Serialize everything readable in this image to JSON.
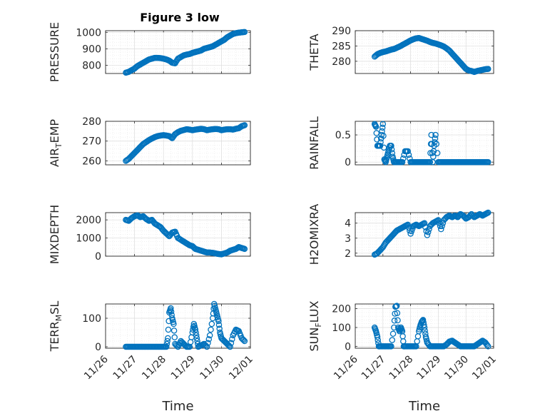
{
  "figure_title": "Figure 3 low",
  "marker_color": "#0072BD",
  "chart_data": [
    {
      "type": "scatter",
      "id": "pressure",
      "title": "Figure 3 low",
      "ylabel": "PRESSURE",
      "ylabel_sub": "",
      "ylim": [
        750,
        1010
      ],
      "yticks": [
        800,
        900,
        1000
      ],
      "xlim": [
        0,
        5
      ],
      "xticklabels": [
        "11/26",
        "11/27",
        "11/28",
        "11/29",
        "11/30",
        "12/01"
      ],
      "xlabel": "",
      "grid": true,
      "x": [
        0.7,
        0.8,
        0.9,
        1.0,
        1.1,
        1.2,
        1.3,
        1.4,
        1.5,
        1.6,
        1.7,
        1.8,
        1.9,
        2.0,
        2.1,
        2.2,
        2.3,
        2.4,
        2.5,
        2.6,
        2.7,
        2.8,
        2.9,
        3.0,
        3.1,
        3.2,
        3.3,
        3.4,
        3.5,
        3.6,
        3.7,
        3.8,
        3.9,
        4.0,
        4.1,
        4.2,
        4.3,
        4.4,
        4.5,
        4.6,
        4.7,
        4.8
      ],
      "y": [
        755,
        760,
        770,
        780,
        795,
        805,
        815,
        825,
        835,
        840,
        845,
        845,
        843,
        840,
        835,
        828,
        815,
        812,
        840,
        850,
        860,
        865,
        868,
        875,
        880,
        885,
        890,
        900,
        905,
        910,
        915,
        925,
        935,
        945,
        955,
        970,
        980,
        990,
        995,
        998,
        1000,
        1002
      ]
    },
    {
      "type": "scatter",
      "id": "theta",
      "ylabel": "THETA",
      "ylabel_sub": "",
      "ylim": [
        276,
        290
      ],
      "yticks": [
        280,
        285,
        290
      ],
      "xlim": [
        0,
        5
      ],
      "xticklabels": [
        "11/26",
        "11/27",
        "11/28",
        "11/29",
        "11/30",
        "12/01"
      ],
      "xlabel": "",
      "grid": true,
      "x": [
        0.7,
        0.8,
        0.9,
        1.0,
        1.1,
        1.2,
        1.3,
        1.4,
        1.5,
        1.6,
        1.7,
        1.8,
        1.9,
        2.0,
        2.1,
        2.2,
        2.3,
        2.4,
        2.5,
        2.6,
        2.7,
        2.8,
        2.9,
        3.0,
        3.1,
        3.2,
        3.3,
        3.4,
        3.5,
        3.6,
        3.7,
        3.8,
        3.9,
        4.0,
        4.1,
        4.2,
        4.3,
        4.4,
        4.5,
        4.6,
        4.7,
        4.8
      ],
      "y": [
        281.5,
        282.3,
        282.7,
        283,
        283.2,
        283.5,
        283.8,
        284,
        284.4,
        284.8,
        285.3,
        285.8,
        286.3,
        286.8,
        287.2,
        287.5,
        287.6,
        287.3,
        287,
        286.7,
        286.3,
        286,
        285.8,
        285.5,
        285.2,
        284.8,
        284.2,
        283.5,
        282.5,
        281.5,
        280.5,
        279.5,
        278.5,
        277.5,
        277,
        276.8,
        276.5,
        276.8,
        277,
        277.2,
        277.4,
        277.5
      ]
    },
    {
      "type": "scatter",
      "id": "air-temp",
      "ylabel": "AIR",
      "ylabel_sub": "T",
      "ylabel_tail": "EMP",
      "ylim": [
        258,
        280
      ],
      "yticks": [
        260,
        270,
        280
      ],
      "xlim": [
        0,
        5
      ],
      "xticklabels": [
        "11/26",
        "11/27",
        "11/28",
        "11/29",
        "11/30",
        "12/01"
      ],
      "xlabel": "",
      "grid": true,
      "x": [
        0.7,
        0.8,
        0.9,
        1.0,
        1.1,
        1.2,
        1.3,
        1.4,
        1.5,
        1.6,
        1.7,
        1.8,
        1.9,
        2.0,
        2.1,
        2.2,
        2.3,
        2.4,
        2.5,
        2.6,
        2.7,
        2.8,
        2.9,
        3.0,
        3.1,
        3.2,
        3.3,
        3.4,
        3.5,
        3.6,
        3.7,
        3.8,
        3.9,
        4.0,
        4.1,
        4.2,
        4.3,
        4.4,
        4.5,
        4.6,
        4.7,
        4.8
      ],
      "y": [
        260,
        261,
        262.5,
        264,
        265.5,
        267,
        268.5,
        269.5,
        270.5,
        271.3,
        272,
        272.5,
        272.8,
        273,
        272.8,
        272.5,
        271.5,
        273.5,
        274.5,
        275.2,
        275.6,
        276,
        275.8,
        275.5,
        275.8,
        276,
        276.2,
        276,
        275.5,
        275.8,
        276,
        276.1,
        276,
        275.5,
        275.8,
        276,
        276,
        275.8,
        276.2,
        276.5,
        277.5,
        278
      ]
    },
    {
      "type": "scatter",
      "id": "rainfall",
      "ylabel": "RAINFALL",
      "ylabel_sub": "",
      "ylim": [
        -0.05,
        0.75
      ],
      "yticks": [
        0,
        0.5
      ],
      "yticklabels": [
        "0",
        "0.5"
      ],
      "xlim": [
        0,
        5
      ],
      "xticklabels": [
        "11/26",
        "11/27",
        "11/28",
        "11/29",
        "11/30",
        "12/01"
      ],
      "xlabel": "",
      "grid": true,
      "x": [
        0.7,
        0.75,
        0.8,
        0.85,
        0.9,
        0.95,
        1.0,
        1.05,
        1.1,
        1.15,
        1.2,
        1.25,
        1.3,
        1.35,
        1.4,
        1.5,
        1.6,
        1.7,
        1.8,
        1.9,
        2.0,
        2.1,
        2.2,
        2.3,
        2.4,
        2.5,
        2.6,
        2.7,
        2.75,
        2.8,
        2.85,
        2.9,
        3.0,
        3.1,
        3.2,
        3.3,
        3.4,
        3.5,
        3.6,
        3.7,
        3.8,
        3.9,
        4.0,
        4.1,
        4.2,
        4.3,
        4.4,
        4.5,
        4.6,
        4.7,
        4.8
      ],
      "y": [
        0.7,
        0.65,
        0.3,
        0.3,
        0.3,
        0.5,
        0.7,
        0.05,
        0,
        0.1,
        0.2,
        0.3,
        0.3,
        0.1,
        0,
        0,
        0,
        0,
        0.2,
        0.2,
        0,
        0,
        0,
        0,
        0,
        0,
        0,
        0,
        0.5,
        0,
        0.3,
        0.5,
        0,
        0,
        0,
        0,
        0,
        0,
        0,
        0,
        0,
        0,
        0,
        0,
        0,
        0,
        0,
        0,
        0,
        0,
        0
      ]
    },
    {
      "type": "scatter",
      "id": "mixdepth",
      "ylabel": "MIXDEPTH",
      "ylabel_sub": "",
      "ylim": [
        0,
        2400
      ],
      "yticks": [
        0,
        1000,
        2000
      ],
      "xlim": [
        0,
        5
      ],
      "xticklabels": [
        "11/26",
        "11/27",
        "11/28",
        "11/29",
        "11/30",
        "12/01"
      ],
      "xlabel": "",
      "grid": true,
      "x": [
        0.7,
        0.8,
        0.9,
        1.0,
        1.1,
        1.2,
        1.3,
        1.4,
        1.5,
        1.6,
        1.7,
        1.8,
        1.9,
        2.0,
        2.1,
        2.2,
        2.3,
        2.4,
        2.5,
        2.6,
        2.7,
        2.8,
        2.9,
        3.0,
        3.1,
        3.2,
        3.3,
        3.4,
        3.5,
        3.6,
        3.7,
        3.8,
        3.9,
        4.0,
        4.1,
        4.2,
        4.3,
        4.4,
        4.5,
        4.6,
        4.7,
        4.8
      ],
      "y": [
        2000,
        1950,
        2100,
        2200,
        2250,
        2150,
        2200,
        2050,
        1950,
        2000,
        1800,
        1700,
        1600,
        1400,
        1250,
        1100,
        1300,
        1350,
        1000,
        900,
        800,
        700,
        600,
        550,
        400,
        350,
        300,
        250,
        200,
        200,
        180,
        150,
        120,
        100,
        150,
        200,
        300,
        350,
        400,
        500,
        450,
        400
      ]
    },
    {
      "type": "scatter",
      "id": "h2omixra",
      "ylabel": "H2OMIXRA",
      "ylabel_sub": "",
      "ylim": [
        1.8,
        4.7
      ],
      "yticks": [
        2,
        3,
        4
      ],
      "xlim": [
        0,
        5
      ],
      "xticklabels": [
        "11/26",
        "11/27",
        "11/28",
        "11/29",
        "11/30",
        "12/01"
      ],
      "xlabel": "",
      "grid": true,
      "x": [
        0.7,
        0.8,
        0.9,
        1.0,
        1.1,
        1.2,
        1.3,
        1.4,
        1.5,
        1.6,
        1.7,
        1.8,
        1.9,
        2.0,
        2.1,
        2.2,
        2.3,
        2.4,
        2.5,
        2.6,
        2.7,
        2.8,
        2.9,
        3.0,
        3.1,
        3.2,
        3.3,
        3.4,
        3.5,
        3.6,
        3.7,
        3.8,
        3.9,
        4.0,
        4.1,
        4.2,
        4.3,
        4.4,
        4.5,
        4.6,
        4.7,
        4.8
      ],
      "y": [
        1.9,
        2.0,
        2.2,
        2.4,
        2.7,
        2.9,
        3.1,
        3.3,
        3.5,
        3.6,
        3.7,
        3.8,
        3.9,
        3.3,
        3.8,
        3.9,
        3.8,
        3.9,
        4.0,
        3.2,
        3.8,
        4.0,
        4.1,
        4.2,
        3.6,
        4.2,
        4.4,
        4.5,
        4.4,
        4.5,
        4.4,
        4.6,
        4.5,
        4.3,
        4.4,
        4.6,
        4.4,
        4.5,
        4.6,
        4.5,
        4.6,
        4.7
      ]
    },
    {
      "type": "scatter",
      "id": "terr-msl",
      "ylabel": "TERR",
      "ylabel_sub": "M",
      "ylabel_tail": "SL",
      "ylim": [
        -5,
        150
      ],
      "yticks": [
        0,
        100
      ],
      "xlim": [
        0,
        5
      ],
      "xticklabels": [
        "11/26",
        "11/27",
        "11/28",
        "11/29",
        "11/30",
        "12/01"
      ],
      "xlabel": "Time",
      "grid": true,
      "x": [
        0.7,
        0.8,
        0.9,
        1.0,
        1.1,
        1.2,
        1.3,
        1.4,
        1.5,
        1.6,
        1.7,
        1.8,
        1.9,
        2.0,
        2.1,
        2.15,
        2.2,
        2.25,
        2.3,
        2.35,
        2.4,
        2.5,
        2.6,
        2.7,
        2.8,
        2.9,
        3.0,
        3.05,
        3.1,
        3.15,
        3.2,
        3.3,
        3.4,
        3.5,
        3.6,
        3.7,
        3.75,
        3.8,
        3.85,
        3.9,
        3.95,
        4.0,
        4.1,
        4.2,
        4.3,
        4.4,
        4.5,
        4.6,
        4.7,
        4.8
      ],
      "y": [
        0,
        0,
        0,
        0,
        0,
        0,
        0,
        0,
        0,
        0,
        0,
        0,
        0,
        0,
        0,
        30,
        120,
        135,
        100,
        80,
        10,
        0,
        20,
        10,
        0,
        0,
        50,
        80,
        60,
        30,
        0,
        5,
        10,
        0,
        40,
        100,
        150,
        130,
        110,
        90,
        50,
        30,
        20,
        10,
        0,
        40,
        60,
        55,
        30,
        20
      ]
    },
    {
      "type": "scatter",
      "id": "sun-flux",
      "ylabel": "SUN",
      "ylabel_sub": "F",
      "ylabel_tail": "LUX",
      "ylim": [
        -10,
        225
      ],
      "yticks": [
        0,
        100,
        200
      ],
      "xlim": [
        0,
        5
      ],
      "xticklabels": [
        "11/26",
        "11/27",
        "11/28",
        "11/29",
        "11/30",
        "12/01"
      ],
      "xlabel": "Time",
      "grid": true,
      "x": [
        0.7,
        0.75,
        0.8,
        0.85,
        0.9,
        1.0,
        1.1,
        1.2,
        1.3,
        1.4,
        1.45,
        1.5,
        1.55,
        1.6,
        1.65,
        1.7,
        1.75,
        1.8,
        1.9,
        2.0,
        2.1,
        2.2,
        2.3,
        2.35,
        2.4,
        2.45,
        2.5,
        2.55,
        2.6,
        2.7,
        2.8,
        2.9,
        3.0,
        3.1,
        3.2,
        3.3,
        3.4,
        3.5,
        3.6,
        3.7,
        3.8,
        3.9,
        4.0,
        4.1,
        4.2,
        4.3,
        4.4,
        4.5,
        4.6,
        4.7,
        4.8
      ],
      "y": [
        100,
        80,
        50,
        0,
        0,
        0,
        0,
        0,
        0,
        100,
        210,
        215,
        100,
        80,
        100,
        80,
        0,
        0,
        0,
        0,
        0,
        0,
        80,
        110,
        130,
        140,
        100,
        50,
        20,
        0,
        0,
        0,
        0,
        0,
        0,
        10,
        25,
        30,
        20,
        10,
        0,
        0,
        0,
        0,
        0,
        0,
        10,
        20,
        30,
        20,
        0
      ]
    }
  ]
}
